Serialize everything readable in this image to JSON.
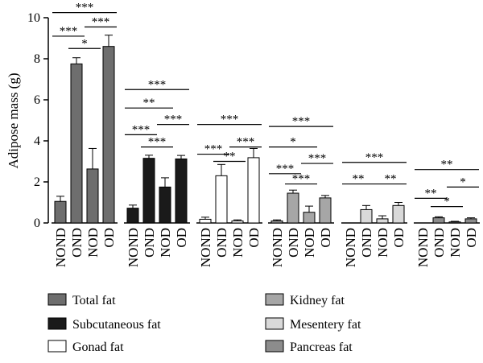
{
  "chart_data": {
    "type": "bar",
    "ylabel": "Adipose mass (g)",
    "ylim": [
      0,
      10
    ],
    "yticks": [
      "0",
      "2",
      "4",
      "6",
      "8",
      "10"
    ],
    "grid": false,
    "legend_position": "bottom",
    "groups": [
      {
        "name": "Total fat",
        "color": "#6e6e6e",
        "categories": [
          "NOND",
          "OND",
          "NOD",
          "OD"
        ],
        "values": [
          1.05,
          7.75,
          2.63,
          8.6
        ],
        "errors": [
          0.25,
          0.3,
          1.0,
          0.55
        ],
        "significance": [
          {
            "from": 0,
            "to": 3,
            "label": "***",
            "y": 10.25
          },
          {
            "from": 0,
            "to": 1,
            "label": "***",
            "y": 9.1
          },
          {
            "from": 2,
            "to": 3,
            "label": "***",
            "y": 9.55
          },
          {
            "from": 1,
            "to": 2,
            "label": "*",
            "y": 8.5
          }
        ]
      },
      {
        "name": "Subcutaneous fat",
        "color": "#1a1a1a",
        "categories": [
          "NOND",
          "OND",
          "NOD",
          "OD"
        ],
        "values": [
          0.72,
          3.15,
          1.75,
          3.12
        ],
        "errors": [
          0.15,
          0.15,
          0.45,
          0.17
        ],
        "significance": [
          {
            "from": 0,
            "to": 3,
            "label": "***",
            "y": 6.5
          },
          {
            "from": 0,
            "to": 2,
            "label": "**",
            "y": 5.6
          },
          {
            "from": 2,
            "to": 3,
            "label": "***",
            "y": 4.8
          },
          {
            "from": 0,
            "to": 1,
            "label": "***",
            "y": 4.3
          },
          {
            "from": 1,
            "to": 2,
            "label": "***",
            "y": 3.7
          }
        ]
      },
      {
        "name": "Gonad fat",
        "color": "#ffffff",
        "categories": [
          "NOND",
          "OND",
          "NOD",
          "OD"
        ],
        "values": [
          0.18,
          2.3,
          0.1,
          3.18
        ],
        "errors": [
          0.1,
          0.55,
          0.05,
          0.45
        ],
        "significance": [
          {
            "from": 0,
            "to": 3,
            "label": "***",
            "y": 4.8
          },
          {
            "from": 0,
            "to": 1,
            "label": "***",
            "y": 3.35
          },
          {
            "from": 2,
            "to": 3,
            "label": "***",
            "y": 3.7
          },
          {
            "from": 1,
            "to": 2,
            "label": "**",
            "y": 3.0
          }
        ]
      },
      {
        "name": "Kidney fat",
        "color": "#a6a6a6",
        "categories": [
          "NOND",
          "OND",
          "NOD",
          "OD"
        ],
        "values": [
          0.1,
          1.45,
          0.52,
          1.22
        ],
        "errors": [
          0.05,
          0.15,
          0.3,
          0.12
        ],
        "significance": [
          {
            "from": 0,
            "to": 3,
            "label": "***",
            "y": 4.7
          },
          {
            "from": 0,
            "to": 2,
            "label": "*",
            "y": 3.7
          },
          {
            "from": 2,
            "to": 3,
            "label": "***",
            "y": 2.9
          },
          {
            "from": 0,
            "to": 1,
            "label": "***",
            "y": 2.4
          },
          {
            "from": 1,
            "to": 2,
            "label": "***",
            "y": 1.9
          }
        ]
      },
      {
        "name": "Mesentery fat",
        "color": "#d9d9d9",
        "categories": [
          "NOND",
          "OND",
          "NOD",
          "OD"
        ],
        "values": [
          0.0,
          0.65,
          0.2,
          0.85
        ],
        "errors": [
          0.0,
          0.2,
          0.15,
          0.15
        ],
        "significance": [
          {
            "from": 0,
            "to": 3,
            "label": "***",
            "y": 2.95
          },
          {
            "from": 0,
            "to": 1,
            "label": "**",
            "y": 1.9
          },
          {
            "from": 2,
            "to": 3,
            "label": "**",
            "y": 1.9
          }
        ]
      },
      {
        "name": "Pancreas fat",
        "color": "#8c8c8c",
        "categories": [
          "NOND",
          "OND",
          "NOD",
          "OD"
        ],
        "values": [
          0.0,
          0.25,
          0.05,
          0.2
        ],
        "errors": [
          0.0,
          0.05,
          0.03,
          0.05
        ],
        "significance": [
          {
            "from": 0,
            "to": 3,
            "label": "**",
            "y": 2.6
          },
          {
            "from": 2,
            "to": 3,
            "label": "*",
            "y": 1.75
          },
          {
            "from": 0,
            "to": 1,
            "label": "**",
            "y": 1.2
          },
          {
            "from": 1,
            "to": 2,
            "label": "*",
            "y": 0.8
          }
        ]
      }
    ]
  }
}
